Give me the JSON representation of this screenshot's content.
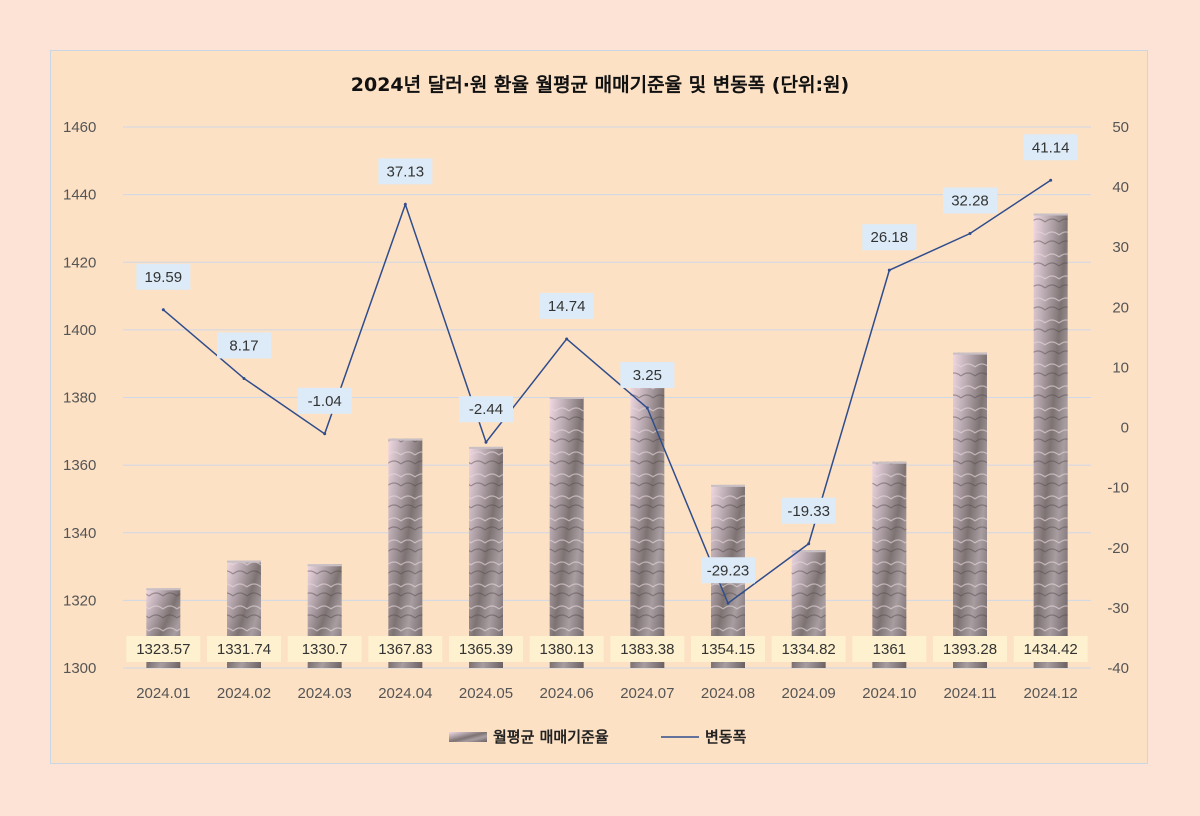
{
  "colors": {
    "page_bg": "#fde3d6",
    "plot_bg": "#fde1c5",
    "grid": "#cfd8e6",
    "line": "#2f4d8c",
    "bar_label_bg": "#fdf1cf",
    "line_label_bg": "#dcebf7",
    "bar_texture_light": "#e9d2d8",
    "bar_texture_dark": "#6f6667"
  },
  "chart_data": {
    "type": "bar",
    "title": "2024년 달러·원 환율 월평균 매매기준율 및 변동폭 (단위:원)",
    "categories": [
      "2024.01",
      "2024.02",
      "2024.03",
      "2024.04",
      "2024.05",
      "2024.06",
      "2024.07",
      "2024.08",
      "2024.09",
      "2024.10",
      "2024.11",
      "2024.12"
    ],
    "series": [
      {
        "name": "월평균 매매기준율",
        "type": "bar",
        "axis": "left",
        "values": [
          1323.57,
          1331.74,
          1330.7,
          1367.83,
          1365.39,
          1380.13,
          1383.38,
          1354.15,
          1334.82,
          1361,
          1393.28,
          1434.42
        ],
        "labels": [
          "1323.57",
          "1331.74",
          "1330.7",
          "1367.83",
          "1365.39",
          "1380.13",
          "1383.38",
          "1354.15",
          "1334.82",
          "1361",
          "1393.28",
          "1434.42"
        ]
      },
      {
        "name": "변동폭",
        "type": "line",
        "axis": "right",
        "values": [
          19.59,
          8.17,
          -1.04,
          37.13,
          -2.44,
          14.74,
          3.25,
          -29.23,
          -19.33,
          26.18,
          32.28,
          41.14
        ],
        "labels": [
          "19.59",
          "8.17",
          "-1.04",
          "37.13",
          "-2.44",
          "14.74",
          "3.25",
          "-29.23",
          "-19.33",
          "26.18",
          "32.28",
          "41.14"
        ]
      }
    ],
    "y_left": {
      "range": [
        1300,
        1460
      ],
      "ticks": [
        "1300",
        "1320",
        "1340",
        "1360",
        "1380",
        "1400",
        "1420",
        "1440",
        "1460"
      ]
    },
    "y_right": {
      "range": [
        -40,
        50
      ],
      "ticks": [
        "-40",
        "-30",
        "-20",
        "-10",
        "0",
        "10",
        "20",
        "30",
        "40",
        "50"
      ]
    },
    "grid": true,
    "legend_position": "bottom"
  }
}
